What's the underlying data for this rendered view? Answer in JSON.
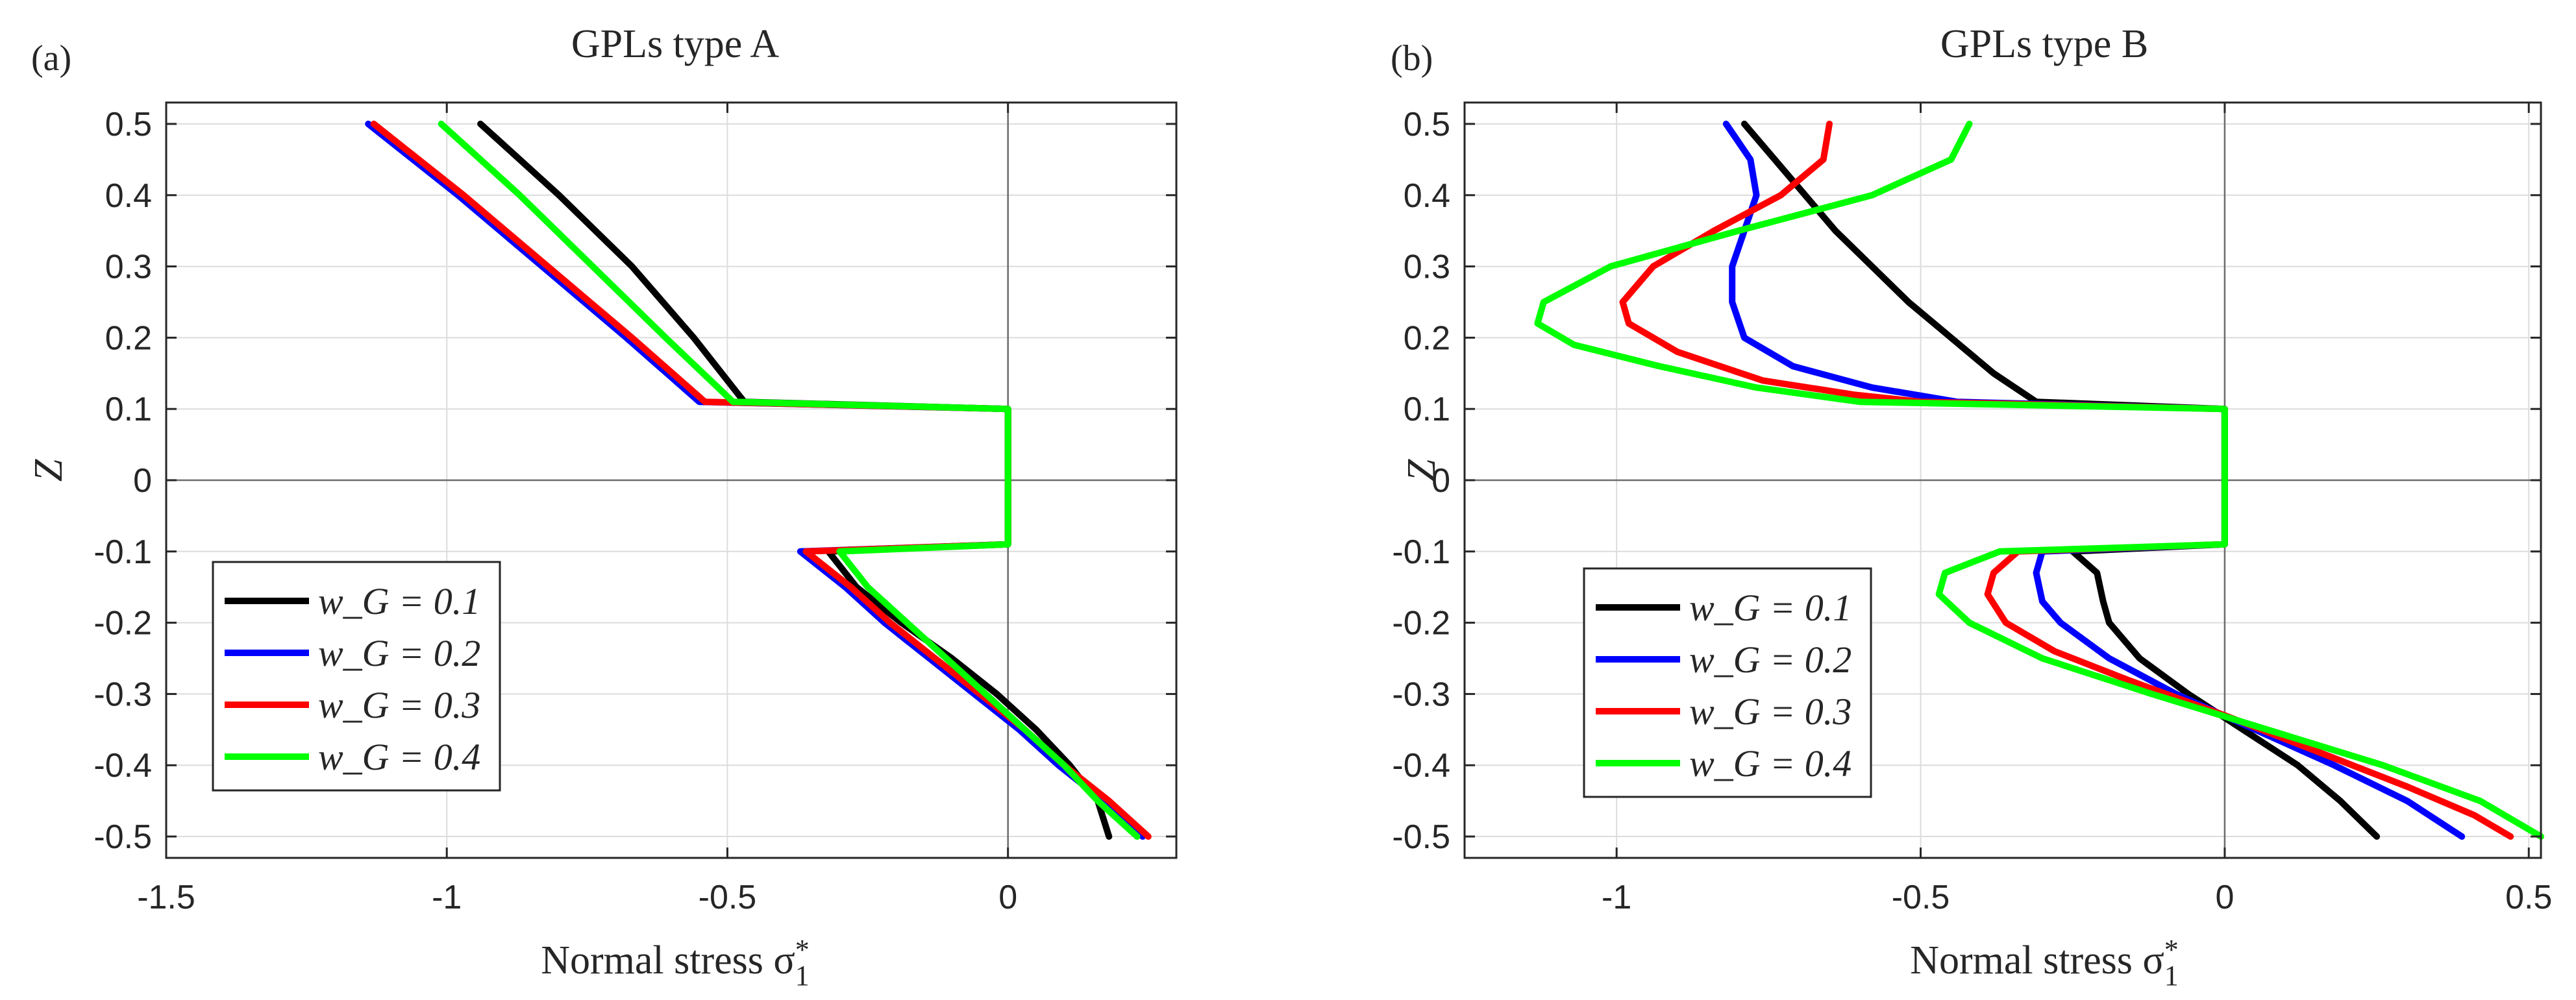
{
  "chart_data": [
    {
      "type": "line",
      "panel_label": "(a)",
      "title": "GPLs type A",
      "xlabel": "Normal stress σ",
      "xlabel_sub": "1",
      "xlabel_sup": "*",
      "ylabel": "Z",
      "xlim": [
        -1.5,
        0.3
      ],
      "ylim": [
        -0.53,
        0.53
      ],
      "xticks": [
        -1.5,
        -1,
        -0.5,
        0
      ],
      "xtick_labels": [
        "-1.5",
        "-1",
        "-0.5",
        "0"
      ],
      "yticks": [
        -0.5,
        -0.4,
        -0.3,
        -0.2,
        -0.1,
        0,
        0.1,
        0.2,
        0.3,
        0.4,
        0.5
      ],
      "ytick_labels": [
        "-0.5",
        "-0.4",
        "-0.3",
        "-0.2",
        "-0.1",
        "0",
        "0.1",
        "0.2",
        "0.3",
        "0.4",
        "0.5"
      ],
      "grid": true,
      "legend": {
        "position": "bottom-left",
        "entries": [
          "w_G = 0.1",
          "w_G = 0.2",
          "w_G = 0.3",
          "w_G = 0.4"
        ]
      },
      "series": [
        {
          "name": "w_G = 0.1",
          "color": "#000000",
          "points": [
            [
              -0.94,
              0.5
            ],
            [
              -0.8,
              0.4
            ],
            [
              -0.67,
              0.3
            ],
            [
              -0.56,
              0.2
            ],
            [
              -0.47,
              0.11
            ],
            [
              0,
              0.1
            ],
            [
              0,
              -0.09
            ],
            [
              -0.32,
              -0.1
            ],
            [
              -0.27,
              -0.15
            ],
            [
              -0.19,
              -0.2
            ],
            [
              -0.1,
              -0.25
            ],
            [
              -0.02,
              -0.3
            ],
            [
              0.05,
              -0.35
            ],
            [
              0.11,
              -0.4
            ],
            [
              0.16,
              -0.45
            ],
            [
              0.18,
              -0.5
            ]
          ]
        },
        {
          "name": "w_G = 0.2",
          "color": "#0000ff",
          "points": [
            [
              -1.14,
              0.5
            ],
            [
              -0.98,
              0.4
            ],
            [
              -0.83,
              0.3
            ],
            [
              -0.68,
              0.2
            ],
            [
              -0.55,
              0.11
            ],
            [
              0,
              0.1
            ],
            [
              0,
              -0.09
            ],
            [
              -0.37,
              -0.1
            ],
            [
              -0.29,
              -0.15
            ],
            [
              -0.22,
              -0.2
            ],
            [
              -0.14,
              -0.25
            ],
            [
              -0.06,
              -0.3
            ],
            [
              0.02,
              -0.35
            ],
            [
              0.09,
              -0.4
            ],
            [
              0.17,
              -0.45
            ],
            [
              0.24,
              -0.5
            ]
          ]
        },
        {
          "name": "w_G = 0.3",
          "color": "#ff0000",
          "points": [
            [
              -1.13,
              0.5
            ],
            [
              -0.97,
              0.4
            ],
            [
              -0.82,
              0.3
            ],
            [
              -0.67,
              0.2
            ],
            [
              -0.54,
              0.11
            ],
            [
              0,
              0.1
            ],
            [
              0,
              -0.09
            ],
            [
              -0.36,
              -0.1
            ],
            [
              -0.28,
              -0.15
            ],
            [
              -0.21,
              -0.2
            ],
            [
              -0.13,
              -0.25
            ],
            [
              -0.05,
              -0.3
            ],
            [
              0.03,
              -0.35
            ],
            [
              0.1,
              -0.4
            ],
            [
              0.18,
              -0.45
            ],
            [
              0.25,
              -0.5
            ]
          ]
        },
        {
          "name": "w_G = 0.4",
          "color": "#00ff00",
          "points": [
            [
              -1.01,
              0.5
            ],
            [
              -0.87,
              0.4
            ],
            [
              -0.74,
              0.3
            ],
            [
              -0.61,
              0.2
            ],
            [
              -0.49,
              0.11
            ],
            [
              0,
              0.1
            ],
            [
              0,
              -0.09
            ],
            [
              -0.3,
              -0.1
            ],
            [
              -0.25,
              -0.15
            ],
            [
              -0.18,
              -0.2
            ],
            [
              -0.11,
              -0.25
            ],
            [
              -0.04,
              -0.3
            ],
            [
              0.03,
              -0.35
            ],
            [
              0.1,
              -0.4
            ],
            [
              0.16,
              -0.45
            ],
            [
              0.23,
              -0.5
            ]
          ]
        }
      ]
    },
    {
      "type": "line",
      "panel_label": "(b)",
      "title": "GPLs type B",
      "xlabel": "Normal stress σ",
      "xlabel_sub": "1",
      "xlabel_sup": "*",
      "ylabel": "Z",
      "xlim": [
        -1.25,
        0.52
      ],
      "ylim": [
        -0.53,
        0.53
      ],
      "xticks": [
        -1,
        -0.5,
        0,
        0.5
      ],
      "xtick_labels": [
        "-1",
        "-0.5",
        "0",
        "0.5"
      ],
      "yticks": [
        -0.5,
        -0.4,
        -0.3,
        -0.2,
        -0.1,
        0,
        0.1,
        0.2,
        0.3,
        0.4,
        0.5
      ],
      "ytick_labels": [
        "-0.5",
        "-0.4",
        "-0.3",
        "-0.2",
        "-0.1",
        "0",
        "0.1",
        "0.2",
        "0.3",
        "0.4",
        "0.5"
      ],
      "grid": true,
      "legend": {
        "position": "bottom-left",
        "entries": [
          "w_G = 0.1",
          "w_G = 0.2",
          "w_G = 0.3",
          "w_G = 0.4"
        ]
      },
      "series": [
        {
          "name": "w_G = 0.1",
          "color": "#000000",
          "points": [
            [
              -0.79,
              0.5
            ],
            [
              -0.74,
              0.45
            ],
            [
              -0.69,
              0.4
            ],
            [
              -0.64,
              0.35
            ],
            [
              -0.58,
              0.3
            ],
            [
              -0.52,
              0.25
            ],
            [
              -0.45,
              0.2
            ],
            [
              -0.38,
              0.15
            ],
            [
              -0.31,
              0.11
            ],
            [
              0,
              0.1
            ],
            [
              0,
              -0.09
            ],
            [
              -0.25,
              -0.1
            ],
            [
              -0.21,
              -0.13
            ],
            [
              -0.2,
              -0.17
            ],
            [
              -0.19,
              -0.2
            ],
            [
              -0.14,
              -0.25
            ],
            [
              -0.06,
              -0.3
            ],
            [
              0.03,
              -0.35
            ],
            [
              0.12,
              -0.4
            ],
            [
              0.19,
              -0.45
            ],
            [
              0.25,
              -0.5
            ]
          ]
        },
        {
          "name": "w_G = 0.2",
          "color": "#0000ff",
          "points": [
            [
              -0.82,
              0.5
            ],
            [
              -0.78,
              0.45
            ],
            [
              -0.77,
              0.4
            ],
            [
              -0.79,
              0.35
            ],
            [
              -0.81,
              0.3
            ],
            [
              -0.81,
              0.25
            ],
            [
              -0.79,
              0.2
            ],
            [
              -0.71,
              0.16
            ],
            [
              -0.58,
              0.13
            ],
            [
              -0.44,
              0.11
            ],
            [
              0,
              0.1
            ],
            [
              0,
              -0.09
            ],
            [
              -0.3,
              -0.1
            ],
            [
              -0.31,
              -0.13
            ],
            [
              -0.3,
              -0.17
            ],
            [
              -0.27,
              -0.2
            ],
            [
              -0.19,
              -0.25
            ],
            [
              -0.08,
              -0.3
            ],
            [
              0.05,
              -0.35
            ],
            [
              0.18,
              -0.4
            ],
            [
              0.3,
              -0.45
            ],
            [
              0.39,
              -0.5
            ]
          ]
        },
        {
          "name": "w_G = 0.3",
          "color": "#ff0000",
          "points": [
            [
              -0.65,
              0.5
            ],
            [
              -0.66,
              0.45
            ],
            [
              -0.73,
              0.4
            ],
            [
              -0.84,
              0.35
            ],
            [
              -0.94,
              0.3
            ],
            [
              -0.99,
              0.25
            ],
            [
              -0.98,
              0.22
            ],
            [
              -0.9,
              0.18
            ],
            [
              -0.76,
              0.14
            ],
            [
              -0.61,
              0.12
            ],
            [
              -0.5,
              0.11
            ],
            [
              0,
              0.1
            ],
            [
              0,
              -0.09
            ],
            [
              -0.34,
              -0.1
            ],
            [
              -0.38,
              -0.13
            ],
            [
              -0.39,
              -0.16
            ],
            [
              -0.36,
              -0.2
            ],
            [
              -0.28,
              -0.24
            ],
            [
              -0.16,
              -0.28
            ],
            [
              0,
              -0.33
            ],
            [
              0.15,
              -0.38
            ],
            [
              0.3,
              -0.43
            ],
            [
              0.41,
              -0.47
            ],
            [
              0.47,
              -0.5
            ]
          ]
        },
        {
          "name": "w_G = 0.4",
          "color": "#00ff00",
          "points": [
            [
              -0.42,
              0.5
            ],
            [
              -0.45,
              0.45
            ],
            [
              -0.58,
              0.4
            ],
            [
              -0.8,
              0.35
            ],
            [
              -1.01,
              0.3
            ],
            [
              -1.12,
              0.25
            ],
            [
              -1.13,
              0.22
            ],
            [
              -1.07,
              0.19
            ],
            [
              -0.93,
              0.16
            ],
            [
              -0.77,
              0.13
            ],
            [
              -0.6,
              0.11
            ],
            [
              0,
              0.1
            ],
            [
              0,
              -0.09
            ],
            [
              -0.37,
              -0.1
            ],
            [
              -0.46,
              -0.13
            ],
            [
              -0.47,
              -0.16
            ],
            [
              -0.42,
              -0.2
            ],
            [
              -0.3,
              -0.25
            ],
            [
              -0.12,
              -0.3
            ],
            [
              0.07,
              -0.35
            ],
            [
              0.26,
              -0.4
            ],
            [
              0.42,
              -0.45
            ],
            [
              0.52,
              -0.5
            ]
          ]
        }
      ]
    }
  ]
}
